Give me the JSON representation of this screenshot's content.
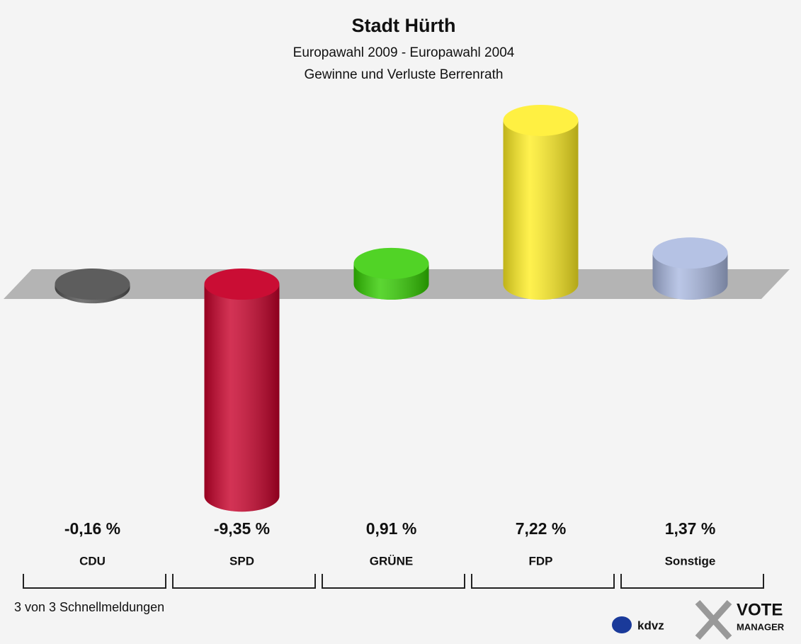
{
  "chart_data": {
    "type": "bar3d",
    "title": "Stadt Hürth",
    "subtitle": [
      "Europawahl 2009 - Europawahl 2004",
      "Gewinne und Verluste Berrenrath"
    ],
    "categories": [
      "CDU",
      "SPD",
      "GRÜNE",
      "FDP",
      "Sonstige"
    ],
    "values": [
      -0.16,
      -9.35,
      0.91,
      7.22,
      1.37
    ],
    "value_labels": [
      "-0,16 %",
      "-9,35 %",
      "0,91 %",
      "7,22 %",
      "1,37 %"
    ],
    "colors": [
      "#555555",
      "#c8002a",
      "#33cc00",
      "#ffee22",
      "#a9b8e0"
    ],
    "footer": "3 von 3 Schnellmeldungen",
    "logo": [
      "kdvz",
      "VOTE",
      "MANAGER"
    ]
  }
}
